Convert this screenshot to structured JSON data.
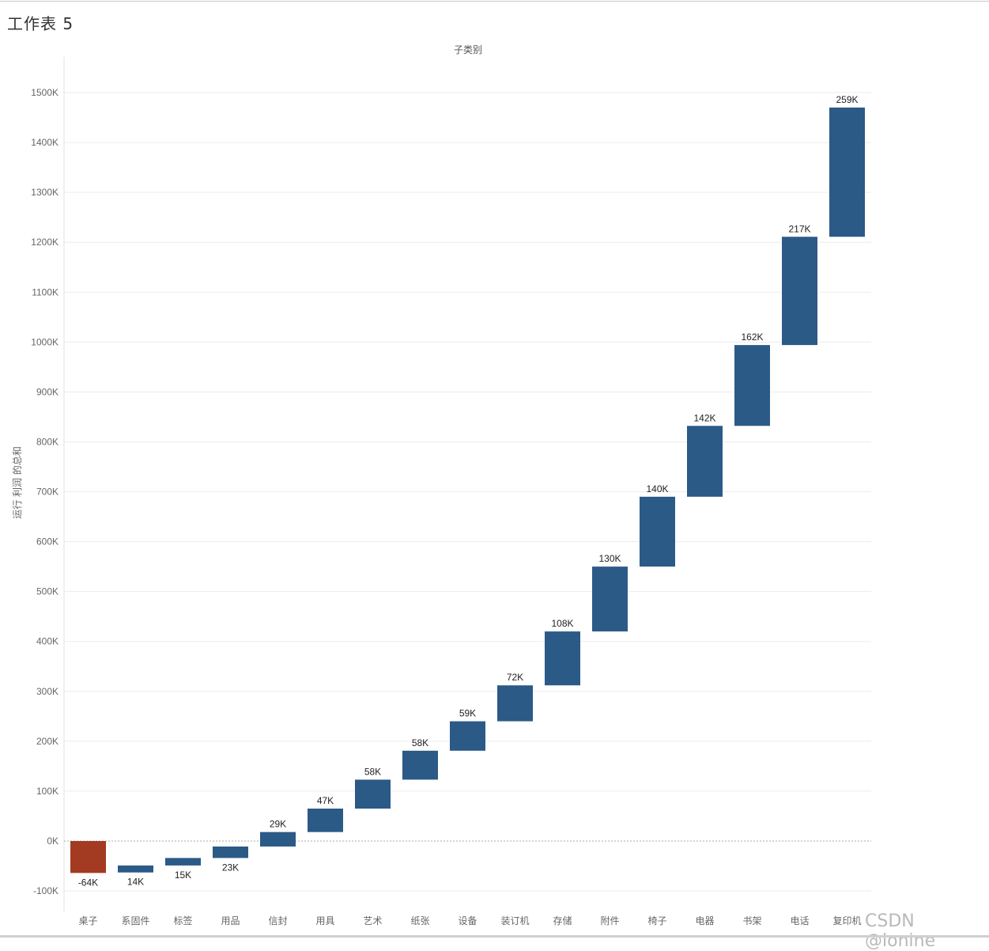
{
  "sheet": {
    "title": "工作表 5"
  },
  "watermark": "CSDN @lonine",
  "colors": {
    "positive": "#2b5a87",
    "negative": "#a33a22",
    "grid": "#ececec",
    "zero_line": "#aaaaaa",
    "axis_text": "#666666"
  },
  "chart_data": {
    "type": "bar",
    "subtype": "waterfall",
    "title": "子类别",
    "xlabel": "",
    "ylabel": "运行 利润 的总和",
    "ylim": [
      -100000,
      1500000
    ],
    "yticks": [
      -100000,
      0,
      100000,
      200000,
      300000,
      400000,
      500000,
      600000,
      700000,
      800000,
      900000,
      1000000,
      1100000,
      1200000,
      1300000,
      1400000,
      1500000
    ],
    "ytick_labels": [
      "-100K",
      "0K",
      "100K",
      "200K",
      "300K",
      "400K",
      "500K",
      "600K",
      "700K",
      "800K",
      "900K",
      "1000K",
      "1100K",
      "1200K",
      "1300K",
      "1400K",
      "1500K"
    ],
    "grid": true,
    "categories": [
      "桌子",
      "系固件",
      "标签",
      "用品",
      "信封",
      "用具",
      "艺术",
      "纸张",
      "设备",
      "装订机",
      "存储",
      "附件",
      "椅子",
      "电器",
      "书架",
      "电话",
      "复印机"
    ],
    "bars": [
      {
        "start": 0,
        "end": -64000,
        "label": "-64K"
      },
      {
        "start": -49000,
        "end": -63000,
        "label": "14K"
      },
      {
        "start": -34000,
        "end": -49000,
        "label": "15K"
      },
      {
        "start": -11000,
        "end": -34000,
        "label": "23K"
      },
      {
        "start": -11000,
        "end": 18000,
        "label": "29K"
      },
      {
        "start": 18000,
        "end": 65000,
        "label": "47K"
      },
      {
        "start": 65000,
        "end": 123000,
        "label": "58K"
      },
      {
        "start": 123000,
        "end": 181000,
        "label": "58K"
      },
      {
        "start": 181000,
        "end": 240000,
        "label": "59K"
      },
      {
        "start": 240000,
        "end": 312000,
        "label": "72K"
      },
      {
        "start": 312000,
        "end": 420000,
        "label": "108K"
      },
      {
        "start": 420000,
        "end": 550000,
        "label": "130K"
      },
      {
        "start": 550000,
        "end": 690000,
        "label": "140K"
      },
      {
        "start": 690000,
        "end": 832000,
        "label": "142K"
      },
      {
        "start": 832000,
        "end": 994000,
        "label": "162K"
      },
      {
        "start": 994000,
        "end": 1211000,
        "label": "217K"
      },
      {
        "start": 1211000,
        "end": 1470000,
        "label": "259K"
      }
    ]
  }
}
